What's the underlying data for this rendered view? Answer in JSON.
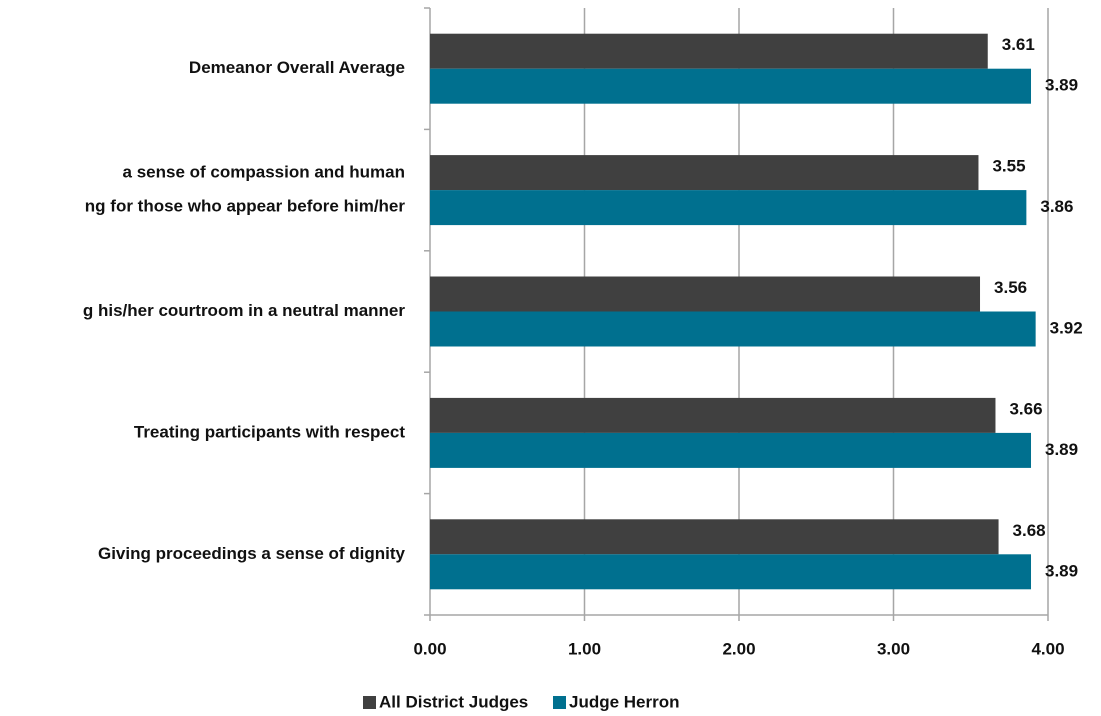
{
  "chart_data": {
    "type": "hbar",
    "categories": [
      [
        "Demeanor Overall Average"
      ],
      [
        "a sense of compassion and human",
        "ng for those who appear before him/her"
      ],
      [
        "g his/her courtroom in a neutral manner"
      ],
      [
        "Treating participants with respect"
      ],
      [
        "Giving proceedings a sense of dignity"
      ]
    ],
    "series": [
      {
        "name": "All District Judges",
        "color": "#404040",
        "values": [
          3.61,
          3.55,
          3.56,
          3.66,
          3.68
        ]
      },
      {
        "name": "Judge Herron",
        "color": "#00708f",
        "values": [
          3.89,
          3.86,
          3.92,
          3.89,
          3.89
        ]
      }
    ],
    "xlim": [
      0,
      4
    ],
    "xticks": [
      {
        "value": 0,
        "label": "0.00"
      },
      {
        "value": 1,
        "label": "1.00"
      },
      {
        "value": 2,
        "label": "2.00"
      },
      {
        "value": 3,
        "label": "3.00"
      },
      {
        "value": 4,
        "label": "4.00"
      }
    ],
    "grid": true,
    "legend": "bottom"
  }
}
